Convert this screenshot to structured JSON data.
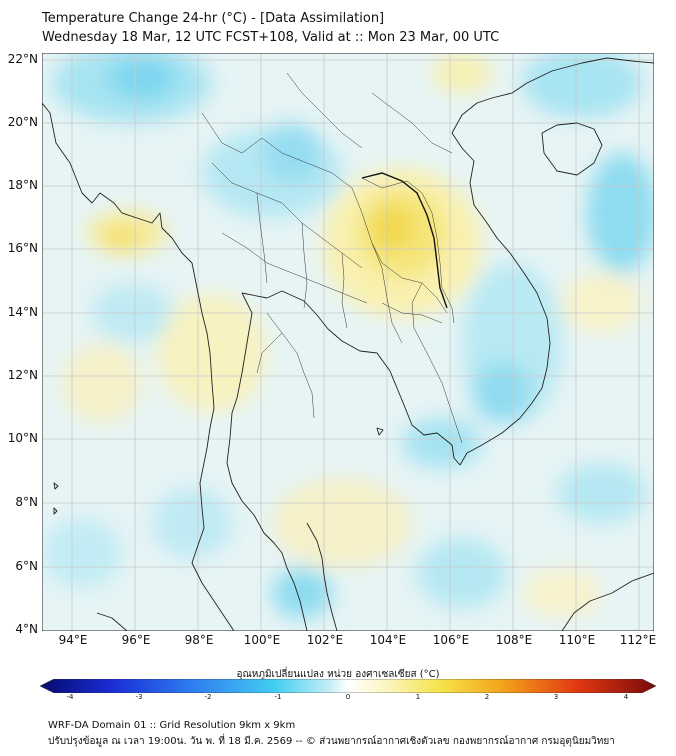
{
  "title_line1": "Temperature Change 24-hr (°C) - [Data Assimilation]",
  "title_line2": "Wednesday 18 Mar, 12 UTC FCST+108, Valid at :: Mon 23 Mar, 00 UTC",
  "lat_labels": [
    "22°N",
    "20°N",
    "18°N",
    "16°N",
    "14°N",
    "12°N",
    "10°N",
    "8°N",
    "6°N",
    "4°N"
  ],
  "lon_labels": [
    "94°E",
    "96°E",
    "98°E",
    "100°E",
    "102°E",
    "104°E",
    "106°E",
    "108°E",
    "110°E",
    "112°E"
  ],
  "colorbar": {
    "title": "อุณหภูมิเปลี่ยนแปลง หน่วย องศาเซลเซียส (°C)",
    "ticks": [
      "-4",
      "-3",
      "-2",
      "-1",
      "0",
      "1",
      "2",
      "3",
      "4"
    ]
  },
  "footer_line1": "WRF-DA Domain 01 :: Grid Resolution 9km x 9km",
  "footer_line2": "ปรับปรุงข้อมูล ณ เวลา 19:00น. วัน พ. ที่ 18 มี.ค. 2569 -- © ส่วนพยากรณ์อากาศเชิงตัวเลข กองพยากรณ์อากาศ กรมอุตุนิยมวิทยา"
}
